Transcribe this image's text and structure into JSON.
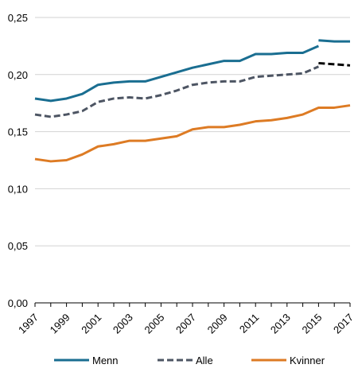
{
  "chart_data": {
    "type": "line",
    "title": "",
    "xlabel": "",
    "ylabel": "",
    "x": [
      1997,
      1998,
      1999,
      2000,
      2001,
      2002,
      2003,
      2004,
      2005,
      2006,
      2007,
      2008,
      2009,
      2010,
      2011,
      2012,
      2013,
      2014,
      2015,
      2016,
      2017
    ],
    "x_tick_labels": [
      "1997",
      "1999",
      "2001",
      "2003",
      "2005",
      "2007",
      "2009",
      "2011",
      "2013",
      "2015",
      "2017"
    ],
    "y_tick_labels": [
      "0,00",
      "0,05",
      "0,10",
      "0,15",
      "0,20",
      "0,25"
    ],
    "ylim": [
      0,
      0.25
    ],
    "xlim": [
      1997,
      2017
    ],
    "grid": {
      "horizontal": true,
      "vertical": false
    },
    "legend_position": "bottom",
    "series": [
      {
        "name": "Menn",
        "color": "#1a6e91",
        "style": "solid",
        "values": [
          0.179,
          0.177,
          0.179,
          0.183,
          0.191,
          0.193,
          0.194,
          0.194,
          0.198,
          0.202,
          0.206,
          0.209,
          0.212,
          0.212,
          0.218,
          0.218,
          0.219,
          0.219,
          0.225,
          null,
          null
        ],
        "extension": {
          "x": [
            2015,
            2016,
            2017
          ],
          "values": [
            0.23,
            0.229,
            0.229
          ]
        }
      },
      {
        "name": "Alle",
        "color": "#4d5563",
        "style": "dashed",
        "values": [
          0.165,
          0.163,
          0.165,
          0.168,
          0.176,
          0.179,
          0.18,
          0.179,
          0.182,
          0.186,
          0.191,
          0.193,
          0.194,
          0.194,
          0.198,
          0.199,
          0.2,
          0.201,
          0.207,
          null,
          null
        ],
        "extension": {
          "color": "#000000",
          "x": [
            2015,
            2016,
            2017
          ],
          "values": [
            0.21,
            0.209,
            0.208
          ]
        }
      },
      {
        "name": "Kvinner",
        "color": "#dd7b24",
        "style": "solid",
        "values": [
          0.126,
          0.124,
          0.125,
          0.13,
          0.137,
          0.139,
          0.142,
          0.142,
          0.144,
          0.146,
          0.152,
          0.154,
          0.154,
          0.156,
          0.159,
          0.16,
          0.162,
          0.165,
          0.171,
          0.171,
          0.173
        ]
      }
    ]
  }
}
